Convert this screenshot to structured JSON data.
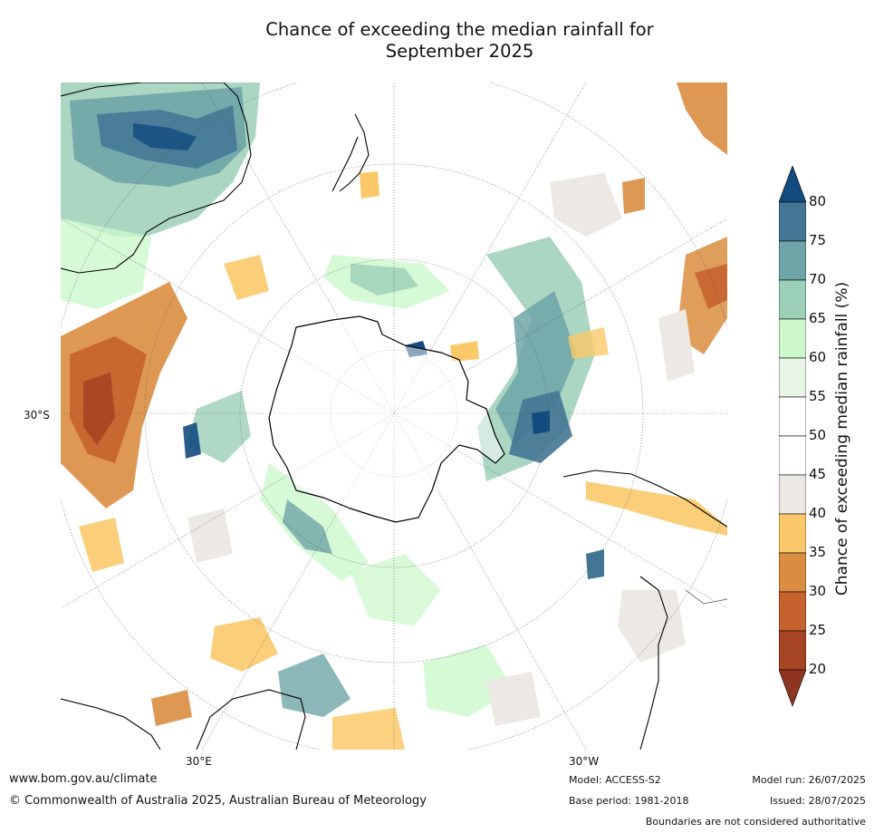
{
  "title_line1": "Chance of exceeding the median rainfall for",
  "title_line2": "September 2025",
  "map": {
    "lat_labels": [
      "30°S"
    ],
    "lon_labels": [
      "30°E",
      "30°W"
    ]
  },
  "colorbar": {
    "label": "Chance of exceeding median rainfall (%)",
    "ticks": [
      "80",
      "75",
      "70",
      "65",
      "60",
      "55",
      "50",
      "45",
      "40",
      "35",
      "30",
      "25",
      "20"
    ],
    "colors": [
      "#124b7f",
      "#427694",
      "#6fa5a8",
      "#9bcfb7",
      "#ccf7cc",
      "#e8f4e6",
      "#ffffff",
      "#ffffff",
      "#ece9e4",
      "#fbc96a",
      "#da8d41",
      "#c6622e",
      "#a64523",
      "#8e3521"
    ]
  },
  "footer": {
    "url": "www.bom.gov.au/climate",
    "copyright": "© Commonwealth of Australia 2025, Australian Bureau of Meteorology",
    "model": "Model: ACCESS-S2",
    "base_period": "Base period: 1981-2018",
    "model_run": "Model run: 26/07/2025",
    "issued": "Issued: 28/07/2025",
    "disclaimer": "Boundaries are not considered authoritative"
  }
}
